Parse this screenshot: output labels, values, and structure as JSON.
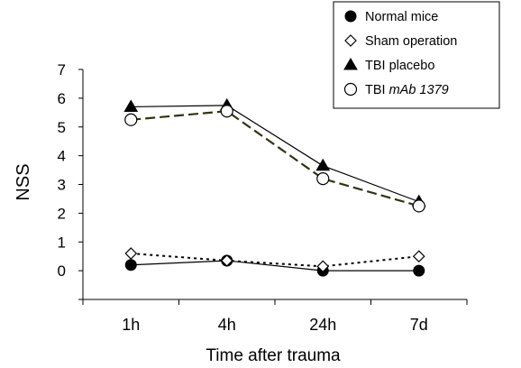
{
  "chart_data": {
    "type": "line",
    "title": "",
    "xlabel": "Time after trauma",
    "ylabel": "NSS",
    "categories": [
      "1h",
      "4h",
      "24h",
      "7d"
    ],
    "ylim": [
      -1,
      7
    ],
    "yticks": [
      0,
      1,
      2,
      3,
      4,
      5,
      6,
      7
    ],
    "grid": false,
    "legend_position": "top-right",
    "series": [
      {
        "name": "Normal mice",
        "values": [
          0.2,
          0.35,
          0.0,
          0.0
        ],
        "marker": "circle-filled",
        "line": "solid",
        "color": "#000000"
      },
      {
        "name": "Sham operation",
        "values": [
          0.6,
          0.35,
          0.15,
          0.5
        ],
        "marker": "diamond-open",
        "line": "dotted",
        "color": "#000000"
      },
      {
        "name": "TBI placebo",
        "values": [
          5.7,
          5.75,
          3.65,
          2.4
        ],
        "marker": "triangle-filled",
        "line": "solid",
        "color": "#000000"
      },
      {
        "name": "TBI ",
        "name_italic": "mAb 1379",
        "values": [
          5.25,
          5.55,
          3.2,
          2.25
        ],
        "marker": "circle-open",
        "line": "dashed",
        "color": "#333311"
      }
    ]
  }
}
